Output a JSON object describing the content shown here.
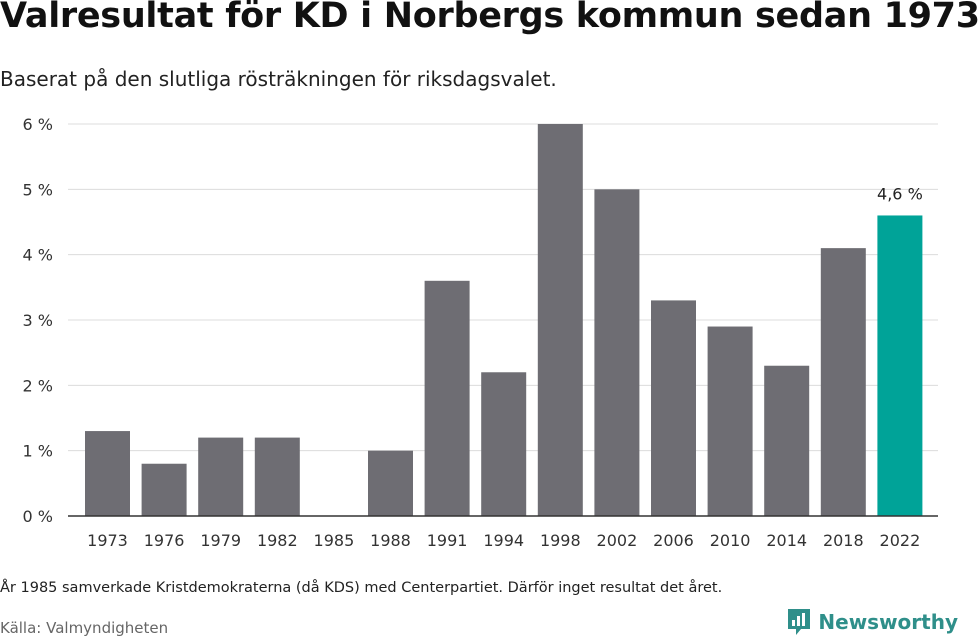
{
  "title": "Valresultat för KD i Norbergs kommun sedan 1973",
  "subtitle": "Baserat på den slutliga rösträkningen för riksdagsvalet.",
  "footnote": "År 1985 samverkade Kristdemokraterna (då KDS) med Centerpartiet. Därför inget resultat det året.",
  "source": "Källa: Valmyndigheten",
  "brand": {
    "name": "Newsworthy",
    "icon": "newsworthy-logo-icon",
    "color": "#2f8f8a"
  },
  "colors": {
    "bar": "#6e6d73",
    "highlight": "#00a398",
    "grid": "#dcdcdc",
    "axis": "#333333"
  },
  "chart_data": {
    "type": "bar",
    "categories": [
      "1973",
      "1976",
      "1979",
      "1982",
      "1985",
      "1988",
      "1991",
      "1994",
      "1998",
      "2002",
      "2006",
      "2010",
      "2014",
      "2018",
      "2022"
    ],
    "values": [
      1.3,
      0.8,
      1.2,
      1.2,
      null,
      1.0,
      3.6,
      2.2,
      6.0,
      5.0,
      3.3,
      2.9,
      2.3,
      4.1,
      4.6
    ],
    "ylim": [
      0,
      6
    ],
    "yticks": [
      0,
      1,
      2,
      3,
      4,
      5,
      6
    ],
    "ytick_labels": [
      "0 %",
      "1 %",
      "2 %",
      "3 %",
      "4 %",
      "5 %",
      "6 %"
    ],
    "highlight_index": 14,
    "annotation": {
      "index": 14,
      "text": "4,6 %"
    },
    "xlabel": "",
    "ylabel": "",
    "grid": true
  }
}
